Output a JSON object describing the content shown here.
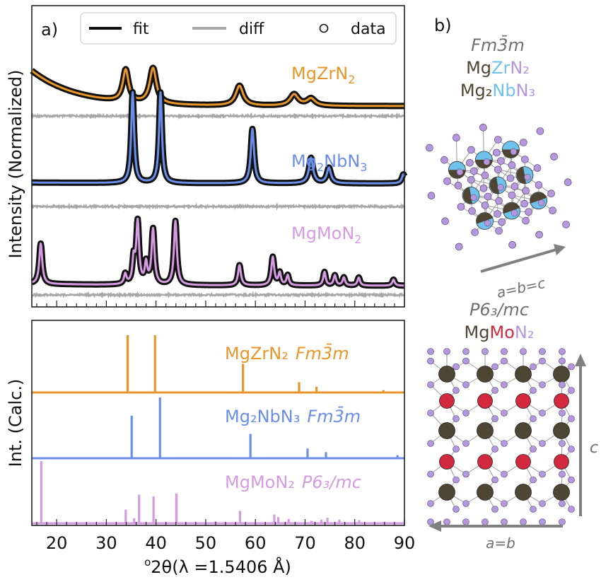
{
  "panel_labels": {
    "a": "a)",
    "b": "b)"
  },
  "legend": {
    "fit": "fit",
    "diff": "diff",
    "data": "data"
  },
  "top_plot": {
    "ylabel": "Intensity (Normalized)"
  },
  "bottom_plot": {
    "ylabel": "Int. (Calc.)"
  },
  "xlabel": {
    "pre": "o",
    "main": "2θ(λ =1.5406 Å)"
  },
  "colors": {
    "orange": "#e8952a",
    "blue": "#6a8ee8",
    "pink": "#d49be0",
    "fit": "#111111",
    "diff": "#a8a8a8",
    "mg_atom": "#4f4533",
    "n_atom": "#b497dd",
    "zr_nb_atom": "#6fc2ec",
    "mo_atom": "#d3293f",
    "gray_text": "#707070"
  },
  "measured_labels": [
    {
      "base": "MgZrN",
      "sub": "2",
      "color": "orange"
    },
    {
      "base": "Mg",
      "sub1": "2",
      "mid": "NbN",
      "sub2": "3",
      "color": "blue"
    },
    {
      "base": "MgMoN",
      "sub": "2",
      "color": "pink"
    }
  ],
  "calc_labels": [
    {
      "formula": "MgZrN₂",
      "sg": "Fm3̄m",
      "color": "orange"
    },
    {
      "formula": "Mg₂NbN₃",
      "sg": "Fm3̄m",
      "color": "blue"
    },
    {
      "formula": "MgMoN₂",
      "sg": "P6₃/mc",
      "color": "pink"
    }
  ],
  "structures": {
    "cubic": {
      "space_group": "Fm3̄m",
      "formula1": "MgZrN₂",
      "formula2": "Mg₂NbN₃",
      "axis_label": "a=b=c"
    },
    "hexagonal": {
      "space_group": "P6₃/mc",
      "formula": "MgMoN₂",
      "axis_c": "c",
      "axis_ab": "a=b"
    }
  },
  "chart_data": [
    {
      "type": "line",
      "title": "",
      "xlabel": "°2θ(λ =1.5406 Å)",
      "ylabel": "Intensity (Normalized)",
      "xlim": [
        15,
        90
      ],
      "legend_position": "top",
      "series": [
        {
          "name": "MgZrN₂",
          "background": {
            "start": 0.55,
            "end": 0.05,
            "decay": 9
          },
          "peaks": [
            [
              33.9,
              0.45,
              0.7
            ],
            [
              39.4,
              0.5,
              0.8
            ],
            [
              56.8,
              0.28,
              0.9
            ],
            [
              67.8,
              0.16,
              1.0
            ],
            [
              71.2,
              0.1,
              1.0
            ]
          ]
        },
        {
          "name": "Mg₂NbN₃",
          "background": {
            "start": 0.03,
            "end": 0.02,
            "decay": 20
          },
          "peaks": [
            [
              35.3,
              1.0,
              0.35
            ],
            [
              40.9,
              1.0,
              0.35
            ],
            [
              59.4,
              0.6,
              0.4
            ],
            [
              71.2,
              0.28,
              0.5
            ],
            [
              74.8,
              0.17,
              0.5
            ],
            [
              89.8,
              0.1,
              0.4
            ]
          ]
        },
        {
          "name": "MgMoN₂",
          "background": {
            "start": 0.05,
            "end": 0.02,
            "decay": 20
          },
          "peaks": [
            [
              16.8,
              0.6,
              0.35
            ],
            [
              33.8,
              0.15,
              0.3
            ],
            [
              35.5,
              0.35,
              0.3
            ],
            [
              36.3,
              0.92,
              0.35
            ],
            [
              38.0,
              0.3,
              0.3
            ],
            [
              39.4,
              0.82,
              0.35
            ],
            [
              43.9,
              0.95,
              0.35
            ],
            [
              56.8,
              0.3,
              0.35
            ],
            [
              63.5,
              0.42,
              0.35
            ],
            [
              64.9,
              0.18,
              0.3
            ],
            [
              66.5,
              0.15,
              0.3
            ],
            [
              73.9,
              0.2,
              0.3
            ],
            [
              76.0,
              0.15,
              0.3
            ],
            [
              77.8,
              0.12,
              0.3
            ],
            [
              80.8,
              0.12,
              0.3
            ],
            [
              87.8,
              0.09,
              0.3
            ]
          ]
        }
      ]
    },
    {
      "type": "bar",
      "title": "",
      "xlabel": "°2θ(λ =1.5406 Å)",
      "ylabel": "Int. (Calc.)",
      "xlim": [
        15,
        90
      ],
      "xticks": [
        20,
        30,
        40,
        50,
        60,
        70,
        80,
        90
      ],
      "series": [
        {
          "name": "MgZrN₂ Fm3̄m",
          "sticks": [
            [
              34.3,
              1.0
            ],
            [
              39.8,
              1.0
            ],
            [
              57.5,
              0.5
            ],
            [
              68.8,
              0.18
            ],
            [
              72.3,
              0.1
            ],
            [
              85.8,
              0.04
            ]
          ]
        },
        {
          "name": "Mg₂NbN₃ Fm3̄m",
          "sticks": [
            [
              35.1,
              0.7
            ],
            [
              40.8,
              1.0
            ],
            [
              59.0,
              0.4
            ],
            [
              70.5,
              0.16
            ],
            [
              74.2,
              0.1
            ],
            [
              88.6,
              0.05
            ]
          ]
        },
        {
          "name": "MgMoN₂ P6₃/mc",
          "sticks": [
            [
              16.9,
              1.0
            ],
            [
              33.9,
              0.22
            ],
            [
              35.6,
              0.08
            ],
            [
              36.6,
              0.46
            ],
            [
              39.5,
              0.43
            ],
            [
              44.1,
              0.48
            ],
            [
              52.0,
              0.03
            ],
            [
              56.9,
              0.2
            ],
            [
              63.8,
              0.14
            ],
            [
              64.6,
              0.1
            ],
            [
              66.7,
              0.07
            ],
            [
              71.3,
              0.04
            ],
            [
              73.3,
              0.06
            ],
            [
              74.5,
              0.09
            ],
            [
              76.9,
              0.06
            ],
            [
              80.9,
              0.05
            ],
            [
              85.9,
              0.02
            ]
          ]
        }
      ]
    }
  ]
}
